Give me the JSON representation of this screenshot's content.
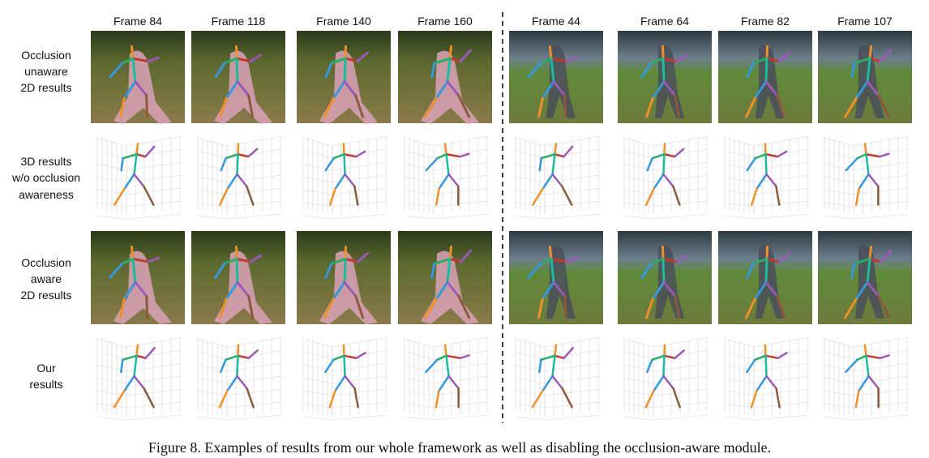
{
  "columns": [
    "Frame 84",
    "Frame 118",
    "Frame 140",
    "Frame 160",
    "Frame 44",
    "Frame 64",
    "Frame 82",
    "Frame 107"
  ],
  "rows": [
    [
      "Occlusion",
      "unaware",
      "2D results"
    ],
    [
      "3D results",
      "w/o occlusion",
      "awareness"
    ],
    [
      "Occlusion",
      "aware",
      "2D results"
    ],
    [
      "Our",
      "results"
    ]
  ],
  "caption": "Figure 8. Examples of results from our whole framework as well as disabling the occlusion-aware module."
}
